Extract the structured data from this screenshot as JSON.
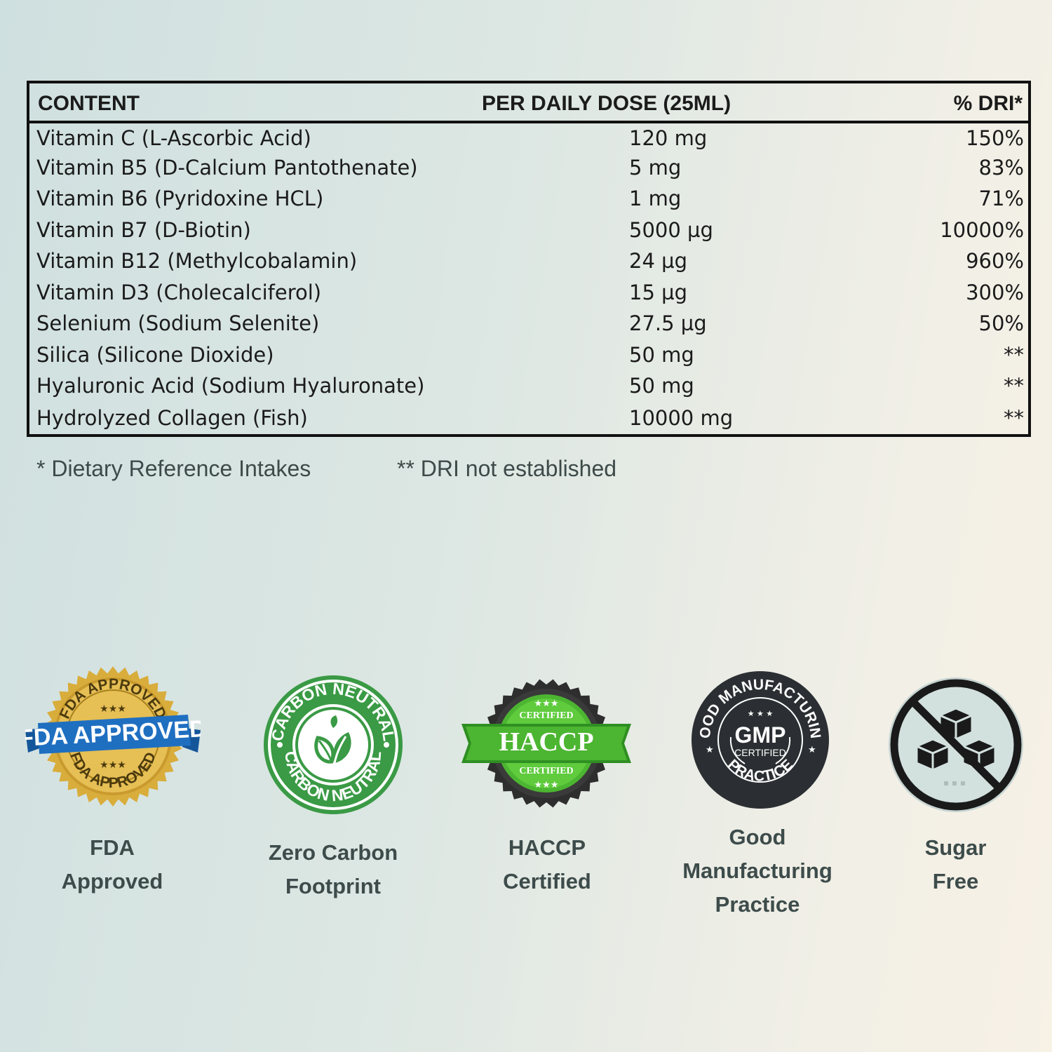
{
  "table": {
    "headers": {
      "content": "CONTENT",
      "dose": "PER DAILY DOSE (25ML)",
      "dri": "% DRI*"
    },
    "rows": [
      {
        "name": "Vitamin C (L-Ascorbic Acid)",
        "amount": "120 mg",
        "dri": "150%"
      },
      {
        "name": "Vitamin B5 (D-Calcium Pantothenate)",
        "amount": "5 mg",
        "dri": "83%"
      },
      {
        "name": "Vitamin B6 (Pyridoxine HCL)",
        "amount": "1 mg",
        "dri": "71%"
      },
      {
        "name": "Vitamin B7 (D-Biotin)",
        "amount": "5000 µg",
        "dri": "10000%"
      },
      {
        "name": "Vitamin B12 (Methylcobalamin)",
        "amount": "24 µg",
        "dri": "960%"
      },
      {
        "name": "Vitamin D3 (Cholecalciferol)",
        "amount": "15 µg",
        "dri": "300%"
      },
      {
        "name": "Selenium (Sodium Selenite)",
        "amount": "27.5 µg",
        "dri": "50%"
      },
      {
        "name": "Silica (Silicone Dioxide)",
        "amount": "50 mg",
        "dri": "**"
      },
      {
        "name": "Hyaluronic Acid (Sodium Hyaluronate)",
        "amount": "50 mg",
        "dri": "**"
      },
      {
        "name": "Hydrolyzed Collagen (Fish)",
        "amount": "10000 mg",
        "dri": "**"
      }
    ]
  },
  "notes": {
    "dri_note": "* Dietary Reference Intakes",
    "not_established_note": "** DRI not established"
  },
  "badges": {
    "fda": {
      "icon": "fda-approved-seal-icon",
      "ribbon_text": "FDA APPROVED",
      "arc_text": "FDA APPROVED",
      "caption_line1": "FDA",
      "caption_line2": "Approved",
      "gold": "#d9ad3c",
      "ribbon": "#1f6fc1"
    },
    "carbon": {
      "icon": "carbon-neutral-leaf-icon",
      "arc_text": "CARBON NEUTRAL",
      "caption_line1": "Zero Carbon",
      "caption_line2": "Footprint",
      "green": "#3a9a45"
    },
    "haccp": {
      "icon": "haccp-certified-seal-icon",
      "title": "HACCP",
      "sub_top": "CERTIFIED",
      "sub_bottom": "CERTIFIED",
      "caption_line1": "HACCP",
      "caption_line2": "Certified",
      "green": "#4cb531"
    },
    "gmp": {
      "icon": "gmp-certified-seal-icon",
      "arc_text": "GOOD MANUFACTURING",
      "arc_bottom": "PRACTICE",
      "title": "GMP",
      "sub": "CERTIFIED",
      "caption_line1": "Good",
      "caption_line2": "Manufacturing",
      "caption_line3": "Practice",
      "dark": "#2b2f33"
    },
    "sugar": {
      "icon": "sugar-free-icon",
      "caption_line1": "Sugar",
      "caption_line2": "Free"
    }
  }
}
